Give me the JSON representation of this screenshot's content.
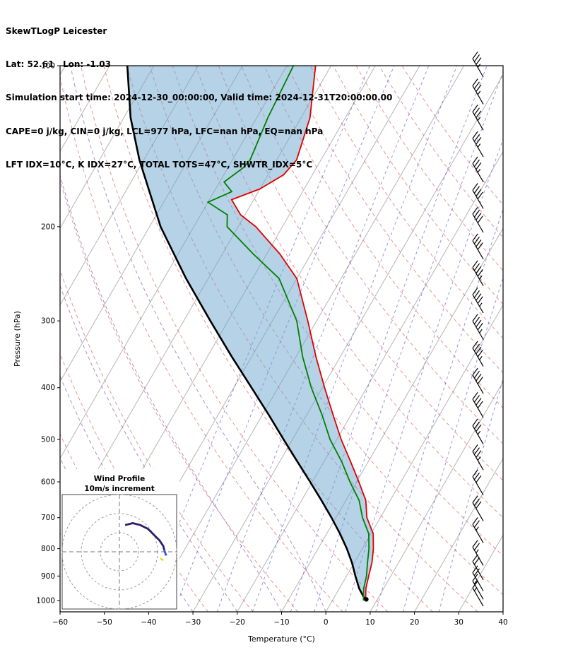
{
  "header": {
    "line1": "SkewTLogP Leicester",
    "line2": "Lat: 52.61   Lon: -1.03",
    "line3": "Simulation start time: 2024-12-30_00:00:00, Valid time: 2024-12-31T20:00:00.00",
    "line4": "CAPE=0 j/kg, CIN=0 j/kg, LCL=977 hPa, LFC=nan hPa, EQ=nan hPa",
    "line5": "LFT IDX=10°C, K IDX=27°C, TOTAL TOTS=47°C, SHWTR_IDX=5°C"
  },
  "axes": {
    "xlabel": "Temperature (°C)",
    "ylabel": "Pressure (hPa)",
    "x_range": [
      -60,
      40
    ],
    "p_range": [
      100,
      1050
    ],
    "skew_deg": 30,
    "x_ticks": [
      -60,
      -50,
      -40,
      -30,
      -20,
      -10,
      0,
      10,
      20,
      30,
      40
    ],
    "x_tick_labels": [
      "−60",
      "−50",
      "−40",
      "−30",
      "−20",
      "−10",
      "0",
      "10",
      "20",
      "30",
      "40"
    ],
    "y_ticks": [
      100,
      200,
      300,
      400,
      500,
      600,
      700,
      800,
      900,
      1000
    ]
  },
  "chart_data": {
    "type": "skewt_logp",
    "temperature_profile": {
      "pressure_hpa": [
        1000,
        950,
        900,
        850,
        800,
        750,
        700,
        650,
        600,
        550,
        500,
        450,
        400,
        350,
        300,
        250,
        225,
        200,
        190,
        178,
        170,
        160,
        150,
        125,
        100
      ],
      "temp_c": [
        7.5,
        6,
        5,
        4,
        2.5,
        0.5,
        -3,
        -5.5,
        -9.5,
        -14,
        -19,
        -24,
        -29.5,
        -35.5,
        -42,
        -50,
        -57,
        -66,
        -71,
        -75,
        -70,
        -66.5,
        -65.5,
        -68,
        -73.5
      ]
    },
    "dewpoint_profile": {
      "pressure_hpa": [
        1000,
        950,
        900,
        850,
        800,
        750,
        700,
        650,
        600,
        550,
        500,
        450,
        400,
        350,
        300,
        250,
        225,
        200,
        190,
        180,
        172,
        165,
        155,
        150,
        125,
        100
      ],
      "temp_c": [
        7,
        5.5,
        4.5,
        3,
        1.5,
        -0.5,
        -4,
        -7,
        -11.5,
        -16,
        -21.5,
        -26.5,
        -32.5,
        -38.5,
        -44.5,
        -54,
        -63,
        -72.5,
        -74,
        -80,
        -76,
        -79,
        -76.5,
        -76,
        -77.5,
        -78.5
      ]
    },
    "parcel_profile": {
      "pressure_hpa": [
        1000,
        950,
        900,
        850,
        800,
        750,
        700,
        650,
        600,
        550,
        500,
        450,
        400,
        350,
        300,
        250,
        200,
        150,
        125,
        100
      ],
      "temp_c": [
        7.5,
        4.5,
        2,
        -0.5,
        -3.5,
        -7,
        -11,
        -15.5,
        -20.5,
        -26,
        -32,
        -38.5,
        -46,
        -54.5,
        -64,
        -75,
        -87.5,
        -101,
        -108.5,
        -116
      ]
    },
    "surface_marker": {
      "pressure_hpa": 995,
      "temp_c": 7.5
    },
    "wind_barbs": {
      "pressure_hpa": [
        105,
        118,
        132,
        148,
        165,
        185,
        205,
        230,
        258,
        290,
        325,
        365,
        410,
        455,
        510,
        570,
        635,
        710,
        780,
        860,
        915,
        960,
        995,
        1025
      ],
      "speed": [
        35,
        35,
        35,
        35,
        35,
        40,
        40,
        40,
        45,
        45,
        45,
        45,
        40,
        40,
        35,
        35,
        30,
        30,
        25,
        25,
        20,
        20,
        15,
        15
      ],
      "direction_deg": 330
    },
    "background": {
      "isotherms_c": [
        -130,
        -120,
        -110,
        -100,
        -90,
        -80,
        -70,
        -60,
        -50,
        -40,
        -30,
        -20,
        -10,
        0,
        10,
        20,
        30,
        40
      ],
      "dry_adiabats_theta_c": [
        -60,
        -50,
        -40,
        -30,
        -20,
        -10,
        0,
        10,
        20,
        30,
        40,
        50,
        60,
        70,
        80,
        90,
        100,
        110,
        120,
        130,
        140,
        150
      ],
      "moist_adiabats_c": [
        -60,
        -50,
        -40,
        -30,
        -20,
        -10,
        0
      ],
      "mixing_ratio_gkg": [
        0.1,
        0.2,
        0.5,
        1,
        2,
        3,
        5,
        8,
        12,
        20
      ]
    },
    "hodograph": {
      "title": "Wind Profile",
      "subtitle": "10m/s increment",
      "rings_ms": [
        10,
        20,
        30
      ],
      "trace_main_uv_ms": [
        [
          3,
          14
        ],
        [
          7,
          15
        ],
        [
          11,
          14
        ],
        [
          15,
          12
        ],
        [
          18,
          9
        ],
        [
          21,
          6
        ],
        [
          23,
          3
        ],
        [
          23.5,
          1
        ]
      ],
      "trace_tail_uv_ms": [
        [
          23.5,
          1
        ],
        [
          24.5,
          -2
        ]
      ],
      "trace_yellow_uv_ms": [
        [
          21.5,
          -3.5
        ],
        [
          23,
          -4.5
        ]
      ]
    }
  },
  "colors": {
    "isotherm": "#b5b5b5",
    "dry_adiabat": "rgba(214,39,40,0.5)",
    "moist_adiabat": "rgba(148,103,189,0.75)",
    "mixing_ratio": "rgba(60,60,220,0.55)",
    "temperature": "#e00000",
    "dewpoint": "#008000",
    "parcel": "#000000",
    "shading": "rgba(110,165,205,0.5)",
    "barb": "#000000",
    "hodo_main": "#2d1e66",
    "hodo_tail": "#3355cc",
    "hodo_yellow": "#e6d800",
    "frame": "#000000"
  }
}
